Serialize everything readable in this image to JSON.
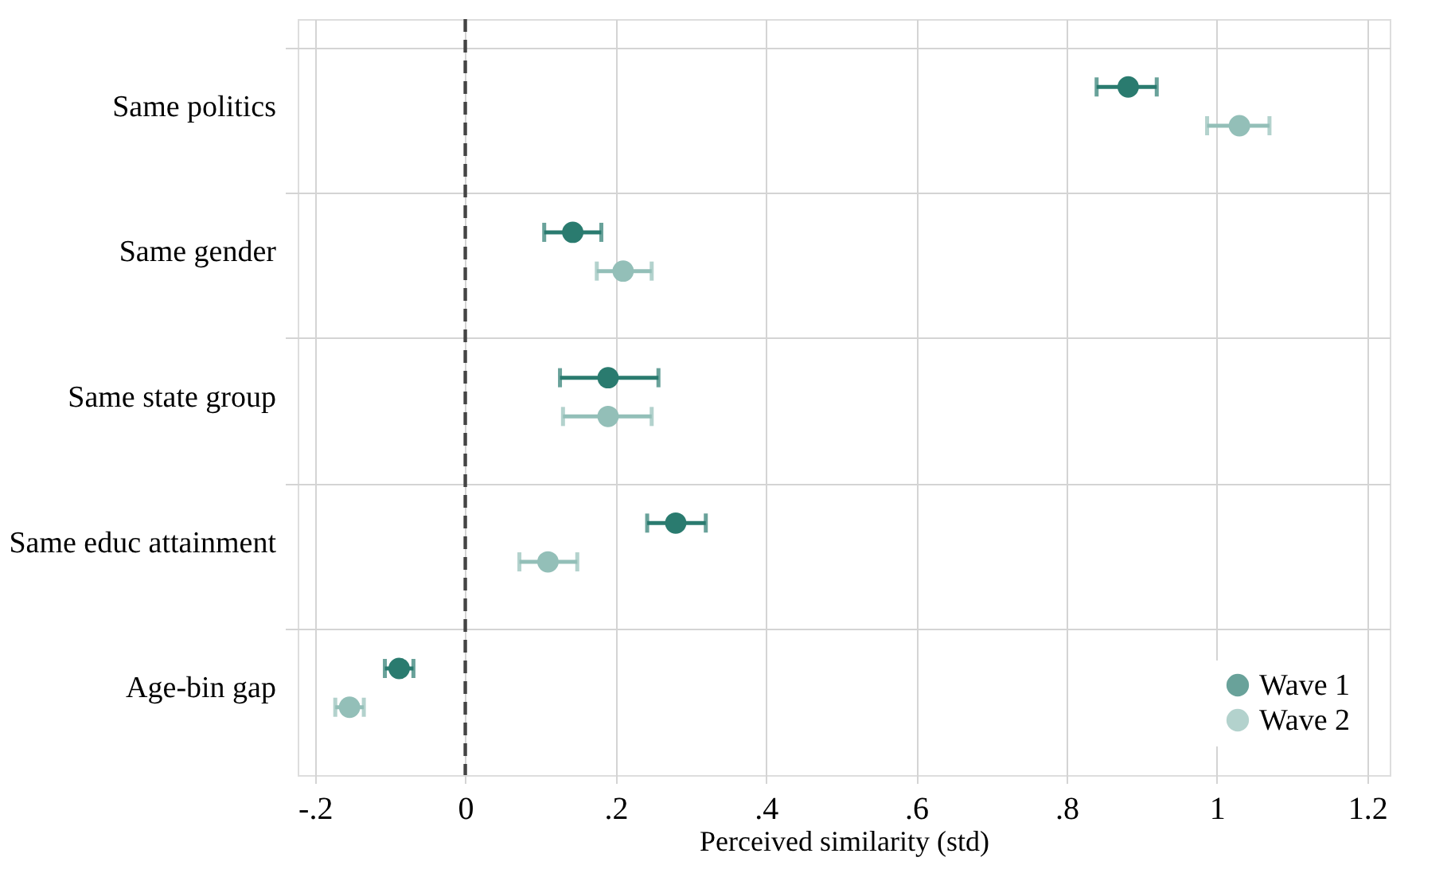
{
  "chart_data": {
    "type": "scatter",
    "orientation": "horizontal",
    "xlabel": "Perceived similarity (std)",
    "categories": [
      "Same politics",
      "Same gender",
      "Same state group",
      "Same educ attainment",
      "Age-bin gap"
    ],
    "series": [
      {
        "name": "Wave 1",
        "color": "#2a7b6f",
        "values": [
          0.882,
          0.143,
          0.19,
          0.28,
          -0.088
        ],
        "errors": [
          [
            0.84,
            0.92
          ],
          [
            0.105,
            0.181
          ],
          [
            0.126,
            0.257
          ],
          [
            0.242,
            0.32
          ],
          [
            -0.107,
            -0.069
          ]
        ]
      },
      {
        "name": "Wave 2",
        "color": "#93bfb8",
        "values": [
          1.03,
          0.21,
          0.19,
          0.11,
          -0.154
        ],
        "errors": [
          [
            0.987,
            1.07
          ],
          [
            0.175,
            0.248
          ],
          [
            0.13,
            0.248
          ],
          [
            0.072,
            0.149
          ],
          [
            -0.173,
            -0.135
          ]
        ]
      }
    ],
    "xlim": [
      -0.223,
      1.23
    ],
    "xticks": [
      {
        "value": -0.2,
        "label": "-.2"
      },
      0,
      {
        "value": 0.2,
        "label": ".2"
      },
      {
        "value": 0.4,
        "label": ".4"
      },
      {
        "value": 0.6,
        "label": ".6"
      },
      {
        "value": 0.8,
        "label": ".8"
      },
      1,
      {
        "value": 1.2,
        "label": "1.2"
      }
    ],
    "ref_lines": [
      {
        "axis": "x",
        "value": 0,
        "color": "#444444",
        "line_style": "dashed"
      }
    ],
    "grid": true,
    "marker": "circle",
    "legend": "bottom right"
  }
}
